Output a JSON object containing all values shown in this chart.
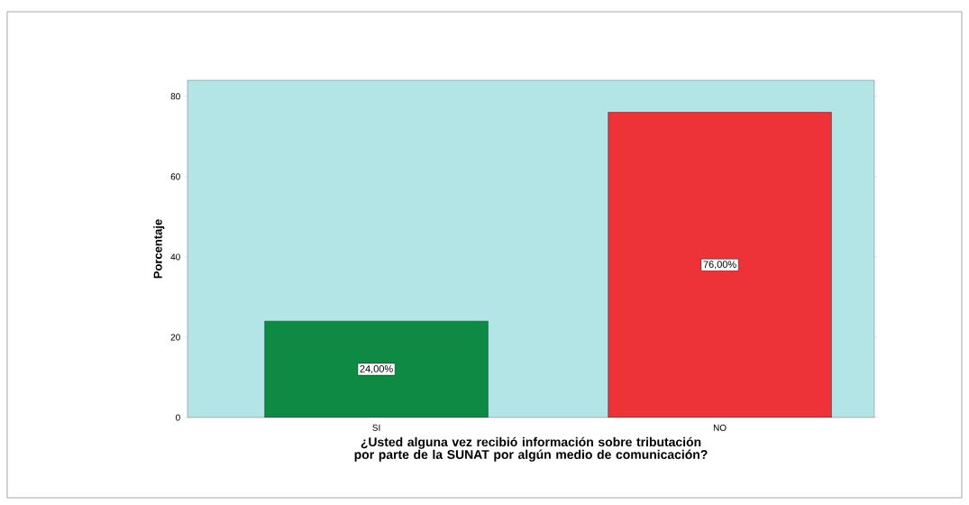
{
  "chart_data": {
    "type": "bar",
    "xlabel": "¿Usted alguna vez recibió información sobre tributación por parte de la SUNAT por algún medio de comunicación?",
    "ylabel": "Porcentaje",
    "categories": [
      "SI",
      "NO"
    ],
    "values": [
      24,
      76
    ],
    "colors": [
      "#0f8a45",
      "#ee3338"
    ],
    "value_labels": [
      "24,00%",
      "76,00%"
    ],
    "ylim": [
      0,
      84
    ],
    "yticks": [
      0,
      20,
      40,
      60,
      80
    ],
    "grid": false
  }
}
